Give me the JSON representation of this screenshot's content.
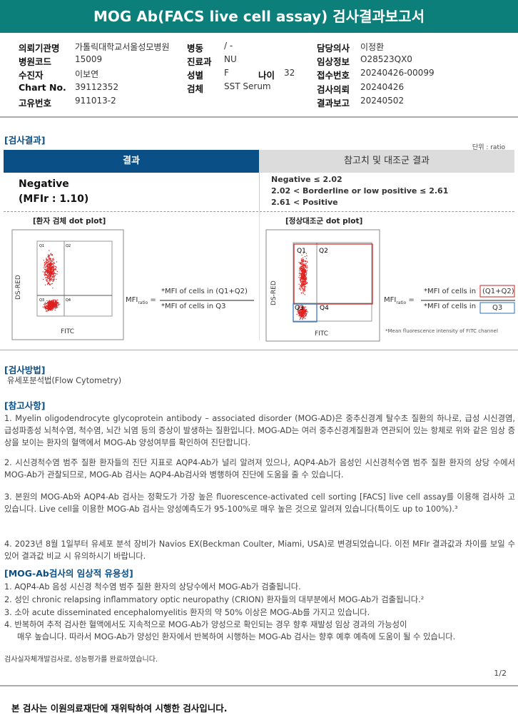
{
  "title": "MOG Ab(FACS live cell assay) 검사결과보고서",
  "info": {
    "col1": [
      {
        "label": "의뢰기관명",
        "value": "가톨릭대학교서울성모병원"
      },
      {
        "label": "병원코드",
        "value": "15009"
      },
      {
        "label": "수진자",
        "value": "이보연"
      },
      {
        "label": "Chart No.",
        "value": "39112352"
      },
      {
        "label": "고유번호",
        "value": "911013-2"
      }
    ],
    "col2": [
      {
        "label": "병동",
        "value": "/ -"
      },
      {
        "label": "진료과",
        "value": "NU"
      },
      {
        "label": "성별",
        "value": "F"
      },
      {
        "label": "검체",
        "value": "SST Serum"
      }
    ],
    "age_label": "나이",
    "age_value": "32",
    "col3": [
      {
        "label": "담당의사",
        "value": "이정환"
      },
      {
        "label": "임상정보",
        "value": "O28523QX0"
      },
      {
        "label": "접수번호",
        "value": "20240426-00099"
      },
      {
        "label": "검사의뢰",
        "value": "20240426"
      },
      {
        "label": "결과보고",
        "value": "20240502"
      }
    ]
  },
  "result_section": {
    "title": "[검사결과]",
    "unit": "단위 : ratio",
    "head_result": "결과",
    "head_ref": "참고치 및 대조군 결과",
    "result": "Negative",
    "mfir": "(MFIr : 1.10)",
    "ref": [
      "Negative ≤ 2.02",
      "2.02 < Borderline or low positive ≤ 2.61",
      "2.61 < Positive"
    ]
  },
  "plots": {
    "patient_title": "[환자 검체 dot plot]",
    "control_title": "[정상대조군 dot plot]",
    "ylabel": "DS-RED",
    "xlabel": "FITC",
    "quadrants": [
      "Q1",
      "Q2",
      "Q3",
      "Q4"
    ],
    "mfi": "MFI",
    "ratio": "ratio",
    "eq": "=",
    "num": "*MFI of cells in (Q1+Q2)",
    "den": "*MFI of cells in Q3",
    "num2": "*MFI of cells in",
    "num2_box": "(Q1+Q2)",
    "den2": "*MFI of cells in",
    "den2_box": "Q3",
    "footnote": "*Mean  fluorescence intensity of FITC channel",
    "colors": {
      "dots": "#e02020",
      "q12_box": "#cc2222",
      "q3_box": "#2a6fc0"
    }
  },
  "method": {
    "title": "[검사방법]",
    "text": "유세포분석법(Flow Cytometry)"
  },
  "notes": {
    "title": "[참고사항]",
    "items": [
      "1. Myelin oligodendrocyte glycoprotein antibody – associated disorder (MOG-AD)은 중추신경계 탈수초 질환의 하나로, 급성 시신경염,  급성파종성 뇌척수염, 척수염, 뇌간 뇌염 등의 증상이 발생하는 질환입니다. MOG-AD는 여러 중추신경계질환과 연관되어 있는 항체로  위와 같은 임상 증상을 보이는 환자의 혈액에서 MOG-Ab 양성여부를 확인하여 진단합니다.",
      "2. 시신경척수염 범주 질환 환자들의 진단 지표로 AQP4-Ab가 널리 알려져 있으나, AQP4-Ab가 음성인 시신경척수염 범주 질환 환자의 상당 수에서 MOG-Ab가 관찰되므로, MOG-Ab 검사는 AQP4-Ab검사와 병행하여 진단에 도움을 줄 수 있습니다.",
      "3. 본원의 MOG-Ab와 AQP4-Ab 검사는 정확도가 가장 높은 fluorescence-activated cell sorting [FACS] live cell assay를 이용해 검사하  고 있습니다. Live cell을 이용한 MOG-Ab 검사는 양성예측도가 95-100%로 매우 높은 것으로 알려져 있습니다(특이도 up to 100%).³",
      "4. 2023년 8월 1일부터 유세포 분석 장비가 Navios EX(Beckman Coulter, Miami, USA)로 변경되었습니다. 이전 MFIr 결과값과 차이를 보일 수 있어 결과값 비교 시 유의하시기 바랍니다."
    ]
  },
  "utility": {
    "title": "[MOG-Ab검사의 임상적 유용성]",
    "items": [
      "1.  AQP4-Ab 음성 시신경 척수염 범주 질환 환자의 상당수에서 MOG-Ab가 검출됩니다.",
      "2.  성인 chronic relapsing inflammatory optic neuropathy (CRION) 환자들의 대부분에서 MOG-Ab가 검출됩니다.²",
      "3.  소아 acute disseminated encephalomyelitis 환자의 약 50% 이상은 MOG-Ab를 가지고 있습니다.",
      "4.  반복하여 추적 검사한 혈액에서도 지속적으로 MOG-Ab가 양성으로 확인되는 경우 향후 재발성 임상 경과의 가능성이",
      "매우 높습니다. 따라서 MOG-Ab가 양성인 환자에서 반복하여 시행하는 MOG-Ab 검사는 향후 예후 예측에 도움이 될 수 있습니다."
    ]
  },
  "validation": "검사실자체개발검사로, 성능평가를 완료하였습니다.",
  "page": "1/2",
  "footer": "본 검사는 이원의료재단에 재위탁하여 시행한 검사입니다.",
  "colors": {
    "title_bar": "#0d7f7a",
    "result_header": "#0a4f86",
    "ref_header": "#dcdcdc"
  }
}
